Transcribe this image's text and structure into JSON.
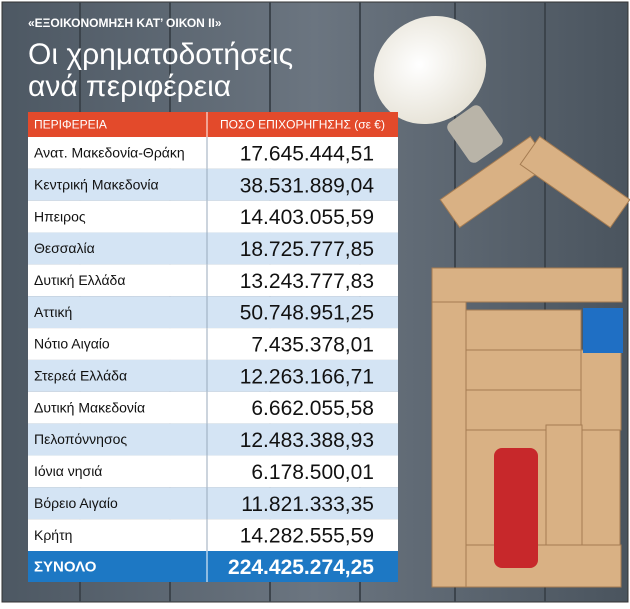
{
  "header": {
    "kicker": "«ΕΞΟΙΚΟΝΟΜΗΣΗ ΚΑΤ’ ΟΙΚΟΝ ΙΙ»",
    "title_lines": [
      "Οι χρηματοδοτήσεις",
      "ανά περιφέρεια"
    ]
  },
  "table": {
    "columns": [
      "ΠΕΡΙΦΕΡΕΙΑ",
      "ΠΟΣΟ ΕΠΙΧΟΡΗΓΗΣΗΣ (σε €)"
    ],
    "rows": [
      [
        "Ανατ. Μακεδονία-Θράκη",
        "17.645.444,51"
      ],
      [
        "Κεντρική Μακεδονία",
        "38.531.889,04"
      ],
      [
        "Ηπειρος",
        "14.403.055,59"
      ],
      [
        "Θεσσαλία",
        "18.725.777,85"
      ],
      [
        "Δυτική Ελλάδα",
        "13.243.777,83"
      ],
      [
        "Αττική",
        "50.748.951,25"
      ],
      [
        "Νότιο Αιγαίο",
        "7.435.378,01"
      ],
      [
        "Στερεά Ελλάδα",
        "12.263.166,71"
      ],
      [
        "Δυτική Μακεδονία",
        "6.662.055,58"
      ],
      [
        "Πελοπόννησος",
        "12.483.388,93"
      ],
      [
        "Ιόνια νησιά",
        "6.178.500,01"
      ],
      [
        "Βόρειο Αιγαίο",
        "11.821.333,35"
      ],
      [
        "Κρήτη",
        "14.282.555,59"
      ]
    ],
    "total": [
      "ΣΥΝΟΛΟ",
      "224.425.274,25"
    ]
  }
}
